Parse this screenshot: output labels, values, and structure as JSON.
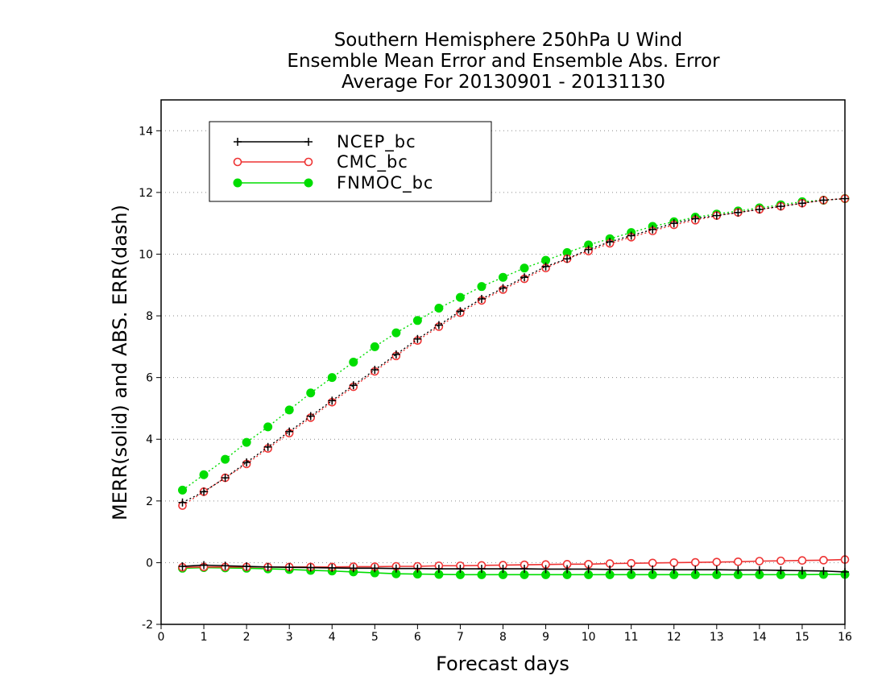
{
  "chart_data": {
    "type": "line",
    "title": [
      "Southern Hemisphere 250hPa U Wind",
      "Ensemble Mean Error and Ensemble Abs. Error",
      "Average For 20130901 - 20131130"
    ],
    "xlabel": "Forecast days",
    "ylabel": "MERR(solid) and ABS. ERR(dash)",
    "xlim": [
      0,
      16
    ],
    "ylim": [
      -2,
      15
    ],
    "xticks": [
      "0",
      "1",
      "2",
      "3",
      "4",
      "5",
      "6",
      "7",
      "8",
      "9",
      "10",
      "11",
      "12",
      "13",
      "14",
      "15",
      "16"
    ],
    "yticks": [
      "-2",
      "0",
      "2",
      "4",
      "6",
      "8",
      "10",
      "12",
      "14"
    ],
    "grid": "horizontal dotted",
    "legend_position": "top-left",
    "x": [
      0.5,
      1,
      1.5,
      2,
      2.5,
      3,
      3.5,
      4,
      4.5,
      5,
      5.5,
      6,
      6.5,
      7,
      7.5,
      8,
      8.5,
      9,
      9.5,
      10,
      10.5,
      11,
      11.5,
      12,
      12.5,
      13,
      13.5,
      14,
      14.5,
      15,
      15.5,
      16
    ],
    "series": [
      {
        "name": "NCEP_bc",
        "color": "#000000",
        "marker": "plus",
        "merr": [
          -0.12,
          -0.08,
          -0.1,
          -0.12,
          -0.14,
          -0.15,
          -0.16,
          -0.17,
          -0.18,
          -0.18,
          -0.19,
          -0.19,
          -0.2,
          -0.2,
          -0.2,
          -0.2,
          -0.2,
          -0.21,
          -0.21,
          -0.21,
          -0.22,
          -0.22,
          -0.22,
          -0.23,
          -0.23,
          -0.23,
          -0.24,
          -0.24,
          -0.25,
          -0.26,
          -0.27,
          -0.3
        ],
        "abs_err": [
          1.95,
          2.3,
          2.75,
          3.25,
          3.75,
          4.25,
          4.75,
          5.25,
          5.75,
          6.25,
          6.75,
          7.25,
          7.7,
          8.15,
          8.55,
          8.9,
          9.25,
          9.6,
          9.85,
          10.15,
          10.4,
          10.6,
          10.8,
          11.0,
          11.15,
          11.25,
          11.35,
          11.45,
          11.55,
          11.65,
          11.75,
          11.8
        ]
      },
      {
        "name": "CMC_bc",
        "color": "#ee3333",
        "marker": "open-circle",
        "merr": [
          -0.15,
          -0.14,
          -0.14,
          -0.14,
          -0.14,
          -0.14,
          -0.14,
          -0.14,
          -0.13,
          -0.13,
          -0.12,
          -0.12,
          -0.1,
          -0.1,
          -0.09,
          -0.08,
          -0.07,
          -0.06,
          -0.05,
          -0.05,
          -0.03,
          -0.02,
          -0.01,
          0.0,
          0.01,
          0.02,
          0.03,
          0.05,
          0.06,
          0.07,
          0.08,
          0.1
        ],
        "abs_err": [
          1.85,
          2.3,
          2.75,
          3.2,
          3.7,
          4.2,
          4.7,
          5.2,
          5.7,
          6.2,
          6.7,
          7.2,
          7.65,
          8.1,
          8.5,
          8.85,
          9.2,
          9.55,
          9.85,
          10.1,
          10.35,
          10.55,
          10.75,
          10.95,
          11.1,
          11.25,
          11.35,
          11.45,
          11.55,
          11.65,
          11.75,
          11.8
        ]
      },
      {
        "name": "FNMOC_bc",
        "color": "#00dd00",
        "marker": "filled-circle",
        "merr": [
          -0.18,
          -0.16,
          -0.17,
          -0.18,
          -0.2,
          -0.22,
          -0.25,
          -0.27,
          -0.3,
          -0.33,
          -0.36,
          -0.37,
          -0.38,
          -0.39,
          -0.39,
          -0.39,
          -0.39,
          -0.39,
          -0.39,
          -0.39,
          -0.39,
          -0.39,
          -0.39,
          -0.39,
          -0.39,
          -0.39,
          -0.39,
          -0.39,
          -0.39,
          -0.39,
          -0.38,
          -0.38
        ],
        "abs_err": [
          2.35,
          2.85,
          3.35,
          3.9,
          4.4,
          4.95,
          5.5,
          6.0,
          6.5,
          7.0,
          7.45,
          7.85,
          8.25,
          8.6,
          8.95,
          9.25,
          9.55,
          9.8,
          10.05,
          10.3,
          10.5,
          10.7,
          10.9,
          11.05,
          11.2,
          11.3,
          11.4,
          11.5,
          11.6,
          11.7,
          11.75,
          11.8
        ]
      }
    ]
  }
}
